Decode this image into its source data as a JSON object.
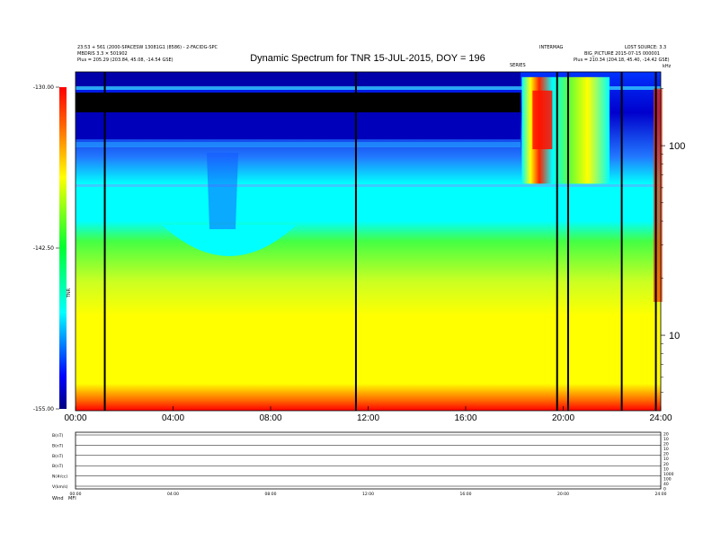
{
  "chart_data": {
    "type": "heatmap",
    "title": "Dynamic Spectrum for TNR 15-JUL-2015, DOY = 196",
    "header": {
      "left_line1": "23:53 + 561 (2000-SPACESW 13081G1 (8586) - 2-FACIDG-SPC",
      "left_line2": "MBDRIS 3.3 ✕ 501902",
      "left_line3": "Plus = 205.29 (203.84, 45.08, -14.54 GSE)",
      "right_line1": "LOST SOURCE: 3.3",
      "right_line2": "BIG_PICTURE 2015-07-15 000001",
      "right_line3": "Plus = 210.34 (204.18, 45.40, -14.42 GSE)",
      "mid_label1": "INTERMAG",
      "mid_label2": "SERIES",
      "corner_label": "kHz"
    },
    "colorbar": {
      "ticks": [
        "-130.00",
        "-142.50",
        "-155.00"
      ],
      "label": "TNR",
      "min": -155.0,
      "max": -130.0
    },
    "x_axis": {
      "ticks": [
        "00:00",
        "04:00",
        "08:00",
        "12:00",
        "16:00",
        "20:00",
        "24:00"
      ],
      "range_hours": [
        0,
        24
      ]
    },
    "y_axis": {
      "scale": "log",
      "unit": "kHz",
      "ticks": [
        "100",
        "10"
      ],
      "range_khz": [
        4,
        245
      ]
    },
    "data_gaps_hours": [
      1.2,
      11.5,
      19.75,
      20.2,
      22.4,
      23.8
    ],
    "burst_region": {
      "start_hours": 18.3,
      "end_hours": 21.9,
      "low_khz": 63,
      "high_khz": 230
    },
    "bottom_panels": {
      "left_labels": [
        "B(nT)",
        "B(nT)",
        "B(nT)",
        "B(nT)",
        "N(#/cc)",
        "V(km/s)"
      ],
      "right_ticks": [
        "20",
        "10",
        "20",
        "10",
        "20",
        "10",
        "20",
        "10",
        "1000",
        "100",
        "40",
        "0"
      ],
      "x_ticks": [
        "00:00",
        "04:00",
        "08:00",
        "12:00",
        "16:00",
        "20:00",
        "24:00"
      ],
      "footer_left": "Wind",
      "footer_sub": "MFI"
    }
  }
}
